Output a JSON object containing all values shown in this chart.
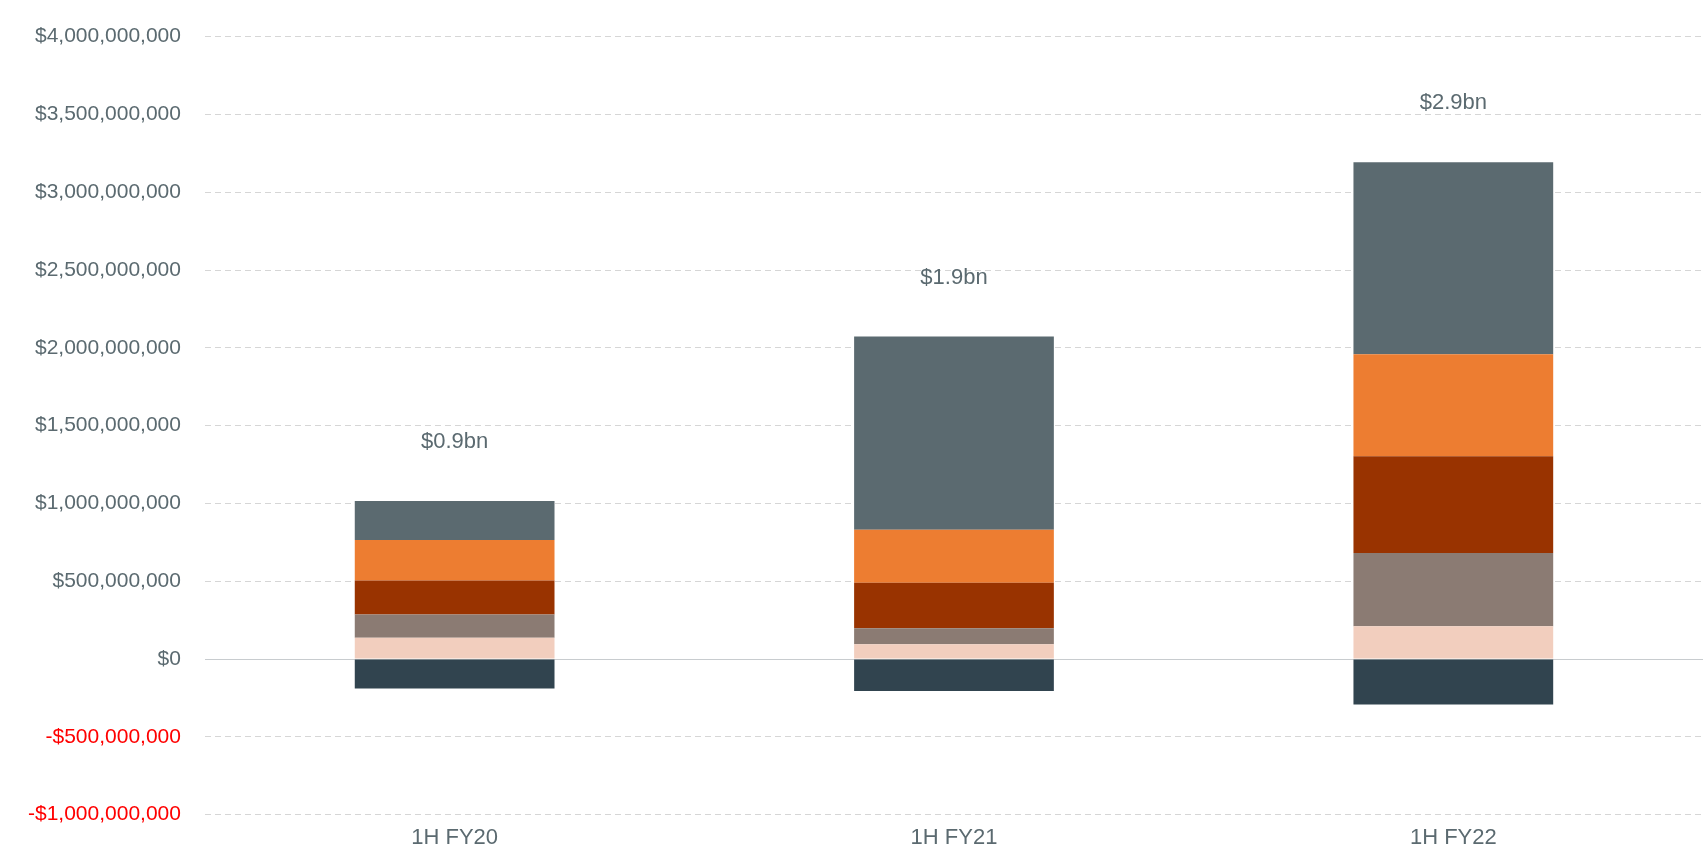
{
  "chart_data": {
    "type": "bar",
    "stacked": true,
    "categories": [
      "1H FY20",
      "1H FY21",
      "1H FY22"
    ],
    "series": [
      {
        "color": "#f2cebe",
        "values": [
          136000000,
          95000000,
          211000000
        ]
      },
      {
        "color": "#8b7b73",
        "values": [
          150000000,
          102000000,
          471000000
        ]
      },
      {
        "color": "#993300",
        "values": [
          218000000,
          293000000,
          621000000
        ]
      },
      {
        "color": "#ed7d31",
        "values": [
          260000000,
          341000000,
          655000000
        ]
      },
      {
        "color": "#5b6a70",
        "values": [
          252000000,
          1241000000,
          1235000000
        ]
      },
      {
        "color": "#31444f",
        "values": [
          -190000000,
          -205000000,
          -293000000
        ]
      }
    ],
    "totals": [
      "$0.9bn",
      "$1.9bn",
      "$2.9bn"
    ],
    "ylim": [
      -1000000000,
      4000000000
    ],
    "yticks": [
      {
        "value": -1000000000,
        "label": "-$1,000,000,000"
      },
      {
        "value": -500000000,
        "label": "-$500,000,000"
      },
      {
        "value": 0,
        "label": "$0"
      },
      {
        "value": 500000000,
        "label": "$500,000,000"
      },
      {
        "value": 1000000000,
        "label": "$1,000,000,000"
      },
      {
        "value": 1500000000,
        "label": "$1,500,000,000"
      },
      {
        "value": 2000000000,
        "label": "$2,000,000,000"
      },
      {
        "value": 2500000000,
        "label": "$2,500,000,000"
      },
      {
        "value": 3000000000,
        "label": "$3,000,000,000"
      },
      {
        "value": 3500000000,
        "label": "$3,500,000,000"
      },
      {
        "value": 4000000000,
        "label": "$4,000,000,000"
      }
    ],
    "grid": "y",
    "legend": false
  }
}
